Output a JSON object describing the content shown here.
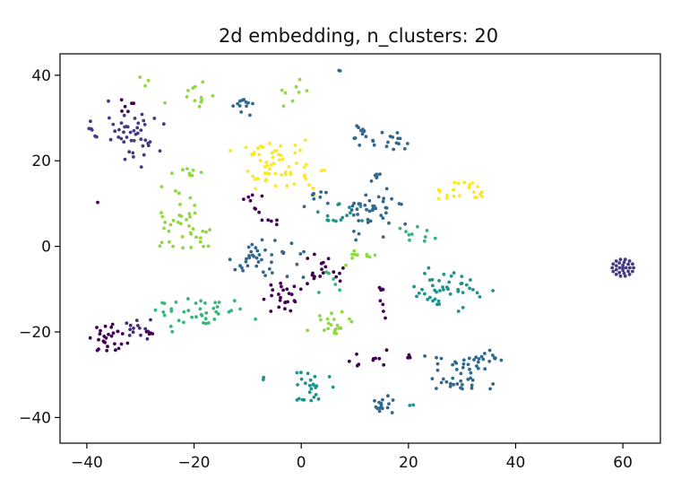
{
  "chart_data": {
    "type": "scatter",
    "title": "2d embedding, n_clusters: 20",
    "xlabel": "",
    "ylabel": "",
    "xlim": [
      -45,
      67
    ],
    "ylim": [
      -46,
      45
    ],
    "xticks": [
      -40,
      -20,
      0,
      20,
      40,
      60
    ],
    "yticks": [
      -40,
      -20,
      0,
      20,
      40
    ],
    "xtick_labels": [
      "−40",
      "−20",
      "0",
      "20",
      "40",
      "60"
    ],
    "ytick_labels": [
      "−40",
      "−20",
      "0",
      "20",
      "40"
    ],
    "grid": false,
    "legend": "none",
    "colormap": "viridis",
    "palette": [
      "#440154",
      "#443983",
      "#31688e",
      "#21918c",
      "#35b779",
      "#90d743",
      "#fde725"
    ],
    "clusters": [
      {
        "center": [
          -32,
          26
        ],
        "spread": [
          4,
          5
        ],
        "count": 45,
        "color": "#443983"
      },
      {
        "center": [
          -38,
          27
        ],
        "spread": [
          1.3,
          1
        ],
        "count": 5,
        "color": "#443983"
      },
      {
        "center": [
          -36,
          -22
        ],
        "spread": [
          2.5,
          2.5
        ],
        "count": 28,
        "color": "#440154"
      },
      {
        "center": [
          -31,
          -19
        ],
        "spread": [
          2.5,
          1.5
        ],
        "count": 14,
        "color": "#472c7a"
      },
      {
        "center": [
          -28,
          -20
        ],
        "spread": [
          1,
          0.6
        ],
        "count": 4,
        "color": "#440154"
      },
      {
        "center": [
          -32,
          33
        ],
        "spread": [
          1,
          2
        ],
        "count": 6,
        "color": "#440154"
      },
      {
        "center": [
          -29,
          39
        ],
        "spread": [
          1,
          1.2
        ],
        "count": 3,
        "color": "#90d743"
      },
      {
        "center": [
          -20,
          35
        ],
        "spread": [
          3,
          2
        ],
        "count": 12,
        "color": "#90d743"
      },
      {
        "center": [
          -11,
          33
        ],
        "spread": [
          2,
          2
        ],
        "count": 12,
        "color": "#31688e"
      },
      {
        "center": [
          -1,
          36
        ],
        "spread": [
          3,
          2
        ],
        "count": 8,
        "color": "#90d743"
      },
      {
        "center": [
          -3,
          18
        ],
        "spread": [
          5,
          4
        ],
        "count": 55,
        "color": "#fde725"
      },
      {
        "center": [
          -8,
          22
        ],
        "spread": [
          3,
          2
        ],
        "count": 8,
        "color": "#fde725"
      },
      {
        "center": [
          -22,
          5
        ],
        "spread": [
          4,
          5
        ],
        "count": 40,
        "color": "#90d743"
      },
      {
        "center": [
          -21,
          17
        ],
        "spread": [
          3,
          1.5
        ],
        "count": 8,
        "color": "#90d743"
      },
      {
        "center": [
          -7,
          -3
        ],
        "spread": [
          5,
          3
        ],
        "count": 40,
        "color": "#31688e"
      },
      {
        "center": [
          -6,
          6
        ],
        "spread": [
          2,
          1
        ],
        "count": 5,
        "color": "#440154"
      },
      {
        "center": [
          -4,
          -12
        ],
        "spread": [
          3,
          3
        ],
        "count": 25,
        "color": "#440154"
      },
      {
        "center": [
          4,
          -6
        ],
        "spread": [
          3,
          3
        ],
        "count": 18,
        "color": "#440154"
      },
      {
        "center": [
          -19,
          -16
        ],
        "spread": [
          6,
          3
        ],
        "count": 40,
        "color": "#35b779"
      },
      {
        "center": [
          6,
          -18
        ],
        "spread": [
          3,
          2
        ],
        "count": 20,
        "color": "#90d743"
      },
      {
        "center": [
          7,
          8
        ],
        "spread": [
          4,
          2
        ],
        "count": 15,
        "color": "#21918c"
      },
      {
        "center": [
          13,
          8
        ],
        "spread": [
          4,
          4
        ],
        "count": 40,
        "color": "#31688e"
      },
      {
        "center": [
          14,
          16
        ],
        "spread": [
          1,
          1
        ],
        "count": 6,
        "color": "#31688e"
      },
      {
        "center": [
          12,
          26
        ],
        "spread": [
          2,
          2
        ],
        "count": 15,
        "color": "#31688e"
      },
      {
        "center": [
          18,
          25
        ],
        "spread": [
          1.5,
          2
        ],
        "count": 12,
        "color": "#31688e"
      },
      {
        "center": [
          30,
          13
        ],
        "spread": [
          2.5,
          2
        ],
        "count": 22,
        "color": "#fde725"
      },
      {
        "center": [
          28,
          -10
        ],
        "spread": [
          5,
          4
        ],
        "count": 45,
        "color": "#21918c"
      },
      {
        "center": [
          22,
          3
        ],
        "spread": [
          3,
          2
        ],
        "count": 10,
        "color": "#35b779"
      },
      {
        "center": [
          30,
          -30
        ],
        "spread": [
          5,
          4
        ],
        "count": 45,
        "color": "#31688e"
      },
      {
        "center": [
          35,
          -27
        ],
        "spread": [
          2,
          2
        ],
        "count": 10,
        "color": "#31688e"
      },
      {
        "center": [
          2,
          -33
        ],
        "spread": [
          3,
          3
        ],
        "count": 25,
        "color": "#21918c"
      },
      {
        "center": [
          -7,
          -31
        ],
        "spread": [
          0.5,
          0.5
        ],
        "count": 2,
        "color": "#21918c"
      },
      {
        "center": [
          15,
          -37
        ],
        "spread": [
          1.5,
          2
        ],
        "count": 15,
        "color": "#31688e"
      },
      {
        "center": [
          20,
          -37
        ],
        "spread": [
          0.5,
          0.5
        ],
        "count": 2,
        "color": "#21918c"
      },
      {
        "center": [
          13,
          -26
        ],
        "spread": [
          3,
          1.5
        ],
        "count": 10,
        "color": "#440154"
      },
      {
        "center": [
          20,
          -26
        ],
        "spread": [
          1,
          1
        ],
        "count": 4,
        "color": "#440154"
      },
      {
        "center": [
          15,
          -12
        ],
        "spread": [
          1,
          4
        ],
        "count": 8,
        "color": "#440154"
      },
      {
        "center": [
          12,
          -2
        ],
        "spread": [
          3,
          2
        ],
        "count": 10,
        "color": "#90d743"
      },
      {
        "center": [
          7,
          -8
        ],
        "spread": [
          3,
          2
        ],
        "count": 6,
        "color": "#35b779"
      },
      {
        "center": [
          -10,
          11
        ],
        "spread": [
          2,
          2
        ],
        "count": 8,
        "color": "#440154"
      },
      {
        "center": [
          3,
          12
        ],
        "spread": [
          2,
          2
        ],
        "count": 8,
        "color": "#31688e"
      },
      {
        "center": [
          7,
          41
        ],
        "spread": [
          0.3,
          0.3
        ],
        "count": 2,
        "color": "#31688e"
      },
      {
        "center": [
          -38,
          10
        ],
        "spread": [
          0.3,
          0.3
        ],
        "count": 1,
        "color": "#440154"
      }
    ],
    "rings": [
      {
        "center": [
          60,
          -5
        ],
        "radii": [
          0.6,
          1.3,
          2.0
        ],
        "counts": [
          4,
          9,
          14
        ],
        "color": "#443983"
      }
    ]
  }
}
